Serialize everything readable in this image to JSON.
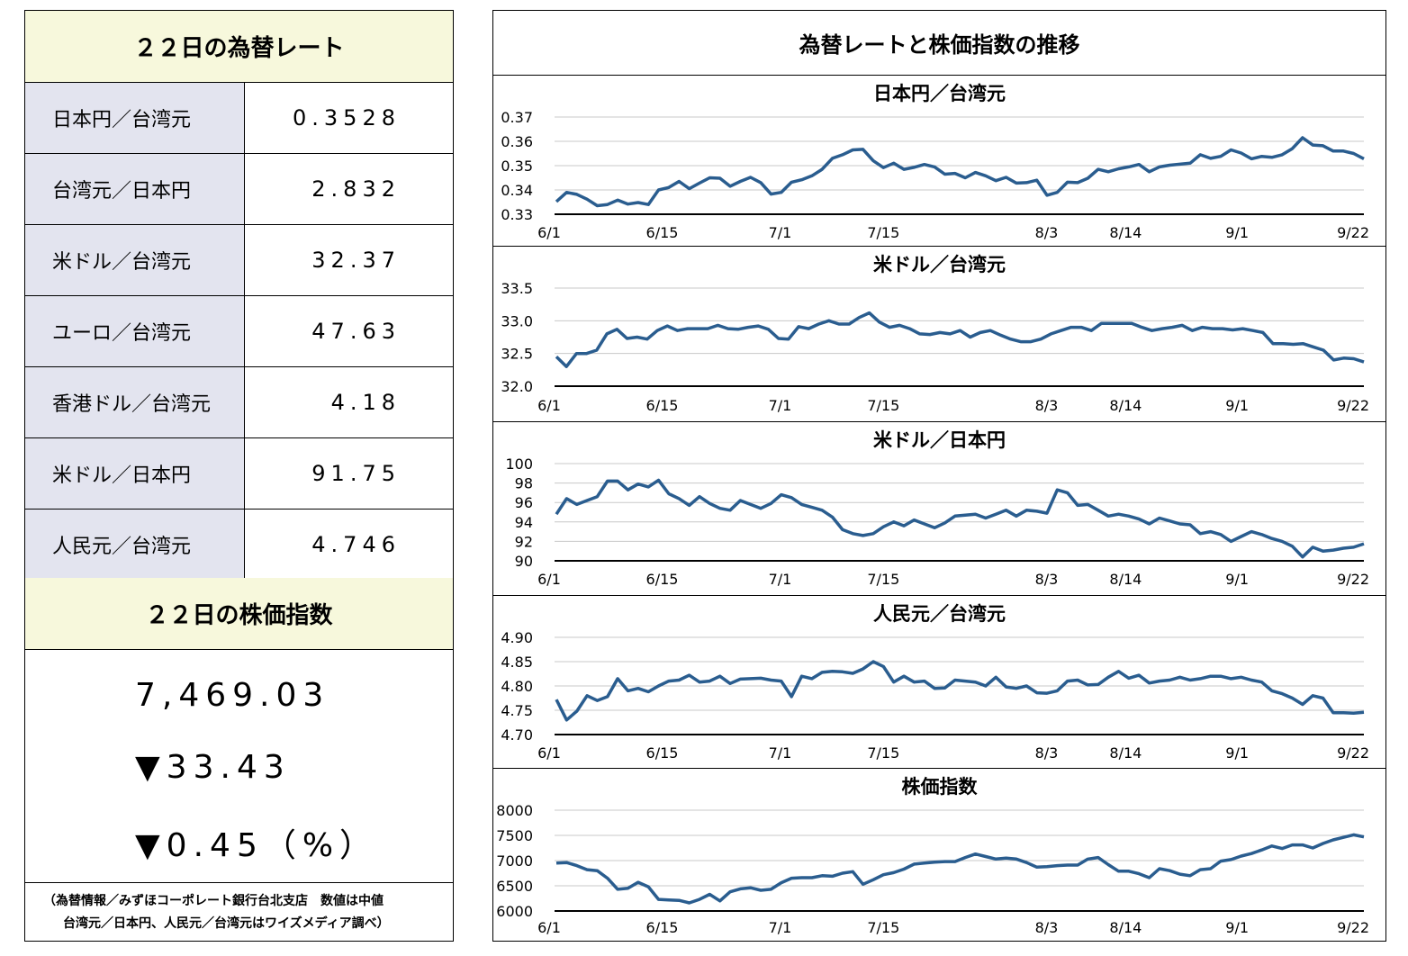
{
  "left": {
    "rate_title": "２２日の為替レート",
    "rates": [
      {
        "label": "日本円／台湾元",
        "value": "0.3528"
      },
      {
        "label": "台湾元／日本円",
        "value": "2.832"
      },
      {
        "label": "米ドル／台湾元",
        "value": "32.37"
      },
      {
        "label": "ユーロ／台湾元",
        "value": "47.63"
      },
      {
        "label": "香港ドル／台湾元",
        "value": "4.18"
      },
      {
        "label": "米ドル／日本円",
        "value": "91.75"
      },
      {
        "label": "人民元／台湾元",
        "value": "4.746"
      }
    ],
    "stock_title": "２２日の株価指数",
    "stock_value": "7,469.03",
    "stock_change": "▼33.43",
    "stock_pct": "▼0.45（%）",
    "footnote_1": "（為替情報／みずほコーポレート銀行台北支店　数値は中値",
    "footnote_2": "台湾元／日本円、人民元／台湾元はワイズメディア調べ）"
  },
  "right": {
    "title": "為替レートと株価指数の推移"
  },
  "colors": {
    "line": "#2a5d8f",
    "header_bg": "#f7f8dc",
    "label_bg": "#e3e4ef"
  },
  "chart_data": [
    {
      "type": "line",
      "title": "日本円／台湾元",
      "x_ticks": [
        "6/1",
        "6/15",
        "7/1",
        "7/15",
        "8/3",
        "8/14",
        "9/1",
        "9/22"
      ],
      "y_ticks": [
        "0.33",
        "0.34",
        "0.35",
        "0.36",
        "0.37"
      ],
      "ylim": [
        0.33,
        0.37
      ],
      "grid": true,
      "values": [
        0.3352,
        0.339,
        0.3382,
        0.3362,
        0.3335,
        0.334,
        0.3358,
        0.3342,
        0.3348,
        0.334,
        0.34,
        0.341,
        0.3435,
        0.3405,
        0.3428,
        0.345,
        0.3448,
        0.3415,
        0.3435,
        0.3452,
        0.343,
        0.3383,
        0.339,
        0.3432,
        0.3442,
        0.3458,
        0.3485,
        0.353,
        0.3545,
        0.3565,
        0.3567,
        0.352,
        0.3492,
        0.351,
        0.3485,
        0.3493,
        0.3505,
        0.3495,
        0.3465,
        0.3468,
        0.345,
        0.3472,
        0.3458,
        0.3438,
        0.3452,
        0.3428,
        0.343,
        0.344,
        0.3378,
        0.339,
        0.3432,
        0.343,
        0.3448,
        0.3485,
        0.3475,
        0.3487,
        0.3495,
        0.3505,
        0.3475,
        0.3495,
        0.3502,
        0.3506,
        0.351,
        0.3545,
        0.353,
        0.3538,
        0.3565,
        0.3552,
        0.3528,
        0.3538,
        0.3534,
        0.3545,
        0.357,
        0.3615,
        0.3585,
        0.3582,
        0.356,
        0.356,
        0.355,
        0.3528
      ]
    },
    {
      "type": "line",
      "title": "米ドル／台湾元",
      "x_ticks": [
        "6/1",
        "6/15",
        "7/1",
        "7/15",
        "8/3",
        "8/14",
        "9/1",
        "9/22"
      ],
      "y_ticks": [
        "32.0",
        "32.5",
        "33.0",
        "33.5"
      ],
      "ylim": [
        32.0,
        33.5
      ],
      "grid": true,
      "values": [
        32.45,
        32.3,
        32.5,
        32.5,
        32.55,
        32.8,
        32.87,
        32.73,
        32.75,
        32.72,
        32.85,
        32.92,
        32.85,
        32.88,
        32.88,
        32.88,
        32.93,
        32.88,
        32.87,
        32.9,
        32.92,
        32.87,
        32.73,
        32.72,
        32.91,
        32.88,
        32.95,
        33.0,
        32.95,
        32.95,
        33.05,
        33.12,
        32.98,
        32.9,
        32.93,
        32.88,
        32.8,
        32.79,
        32.82,
        32.8,
        32.85,
        32.75,
        32.82,
        32.85,
        32.78,
        32.72,
        32.68,
        32.68,
        32.72,
        32.8,
        32.85,
        32.9,
        32.9,
        32.85,
        32.96,
        32.96,
        32.96,
        32.96,
        32.9,
        32.85,
        32.88,
        32.9,
        32.93,
        32.85,
        32.9,
        32.88,
        32.88,
        32.86,
        32.88,
        32.85,
        32.82,
        32.65,
        32.65,
        32.64,
        32.65,
        32.6,
        32.55,
        32.4,
        32.43,
        32.42,
        32.37
      ]
    },
    {
      "type": "line",
      "title": "米ドル／日本円",
      "x_ticks": [
        "6/1",
        "6/15",
        "7/1",
        "7/15",
        "8/3",
        "8/14",
        "9/1",
        "9/22"
      ],
      "y_ticks": [
        "90",
        "92",
        "94",
        "96",
        "98",
        "100"
      ],
      "ylim": [
        90,
        100
      ],
      "grid": true,
      "values": [
        94.8,
        96.4,
        95.8,
        96.2,
        96.6,
        98.2,
        98.2,
        97.3,
        97.9,
        97.6,
        98.3,
        96.9,
        96.4,
        95.7,
        96.6,
        95.9,
        95.4,
        95.2,
        96.2,
        95.8,
        95.4,
        95.9,
        96.8,
        96.5,
        95.8,
        95.5,
        95.2,
        94.5,
        93.2,
        92.8,
        92.6,
        92.8,
        93.5,
        94.0,
        93.6,
        94.2,
        93.8,
        93.4,
        93.9,
        94.6,
        94.7,
        94.8,
        94.4,
        94.8,
        95.2,
        94.6,
        95.2,
        95.1,
        94.9,
        97.3,
        97.0,
        95.7,
        95.8,
        95.2,
        94.6,
        94.8,
        94.6,
        94.3,
        93.8,
        94.4,
        94.1,
        93.8,
        93.7,
        92.8,
        93.0,
        92.7,
        92.0,
        92.5,
        93.0,
        92.7,
        92.3,
        92.0,
        91.5,
        90.4,
        91.4,
        91.0,
        91.1,
        91.3,
        91.4,
        91.75
      ]
    },
    {
      "type": "line",
      "title": "人民元／台湾元",
      "x_ticks": [
        "6/1",
        "6/15",
        "7/1",
        "7/15",
        "8/3",
        "8/14",
        "9/1",
        "9/22"
      ],
      "y_ticks": [
        "4.70",
        "4.75",
        "4.80",
        "4.85",
        "4.90"
      ],
      "ylim": [
        4.7,
        4.9
      ],
      "grid": true,
      "values": [
        4.772,
        4.73,
        4.748,
        4.78,
        4.77,
        4.778,
        4.815,
        4.79,
        4.795,
        4.788,
        4.8,
        4.81,
        4.812,
        4.822,
        4.808,
        4.81,
        4.82,
        4.805,
        4.814,
        4.815,
        4.816,
        4.812,
        4.81,
        4.778,
        4.82,
        4.815,
        4.828,
        4.83,
        4.829,
        4.826,
        4.835,
        4.85,
        4.84,
        4.808,
        4.82,
        4.808,
        4.81,
        4.795,
        4.796,
        4.812,
        4.81,
        4.808,
        4.8,
        4.818,
        4.798,
        4.795,
        4.8,
        4.786,
        4.785,
        4.79,
        4.81,
        4.812,
        4.802,
        4.803,
        4.818,
        4.83,
        4.816,
        4.822,
        4.806,
        4.81,
        4.812,
        4.818,
        4.812,
        4.815,
        4.82,
        4.82,
        4.815,
        4.818,
        4.812,
        4.808,
        4.79,
        4.784,
        4.775,
        4.762,
        4.78,
        4.775,
        4.745,
        4.745,
        4.744,
        4.746
      ]
    },
    {
      "type": "line",
      "title": "株価指数",
      "x_ticks": [
        "6/1",
        "6/15",
        "7/1",
        "7/15",
        "8/3",
        "8/14",
        "9/1",
        "9/22"
      ],
      "y_ticks": [
        "6000",
        "6500",
        "7000",
        "7500",
        "8000"
      ],
      "ylim": [
        6000,
        8000
      ],
      "grid": true,
      "values": [
        6950,
        6960,
        6900,
        6820,
        6800,
        6650,
        6430,
        6450,
        6570,
        6480,
        6230,
        6220,
        6210,
        6160,
        6230,
        6330,
        6200,
        6380,
        6440,
        6460,
        6410,
        6430,
        6560,
        6650,
        6660,
        6660,
        6700,
        6690,
        6750,
        6780,
        6530,
        6620,
        6720,
        6760,
        6830,
        6930,
        6950,
        6970,
        6980,
        6980,
        7060,
        7130,
        7080,
        7030,
        7050,
        7030,
        6960,
        6870,
        6880,
        6900,
        6910,
        6910,
        7030,
        7060,
        6920,
        6790,
        6790,
        6740,
        6660,
        6840,
        6800,
        6730,
        6700,
        6820,
        6840,
        6990,
        7020,
        7090,
        7140,
        7210,
        7290,
        7240,
        7310,
        7310,
        7250,
        7340,
        7410,
        7460,
        7510,
        7469
      ]
    }
  ]
}
